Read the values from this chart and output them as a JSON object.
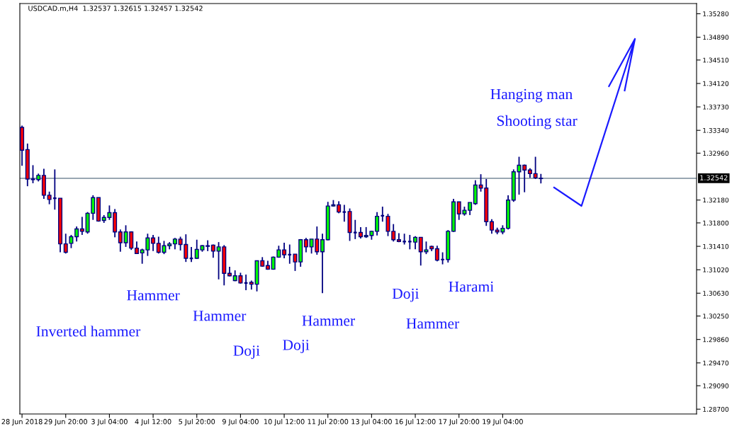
{
  "chart_data": {
    "type": "candlestick",
    "title": "USDCAD.m,H4  1.32537 1.32615 1.32457 1.32542",
    "categories": [
      "28 Jun 2018",
      null,
      null,
      null,
      null,
      null,
      null,
      null,
      "29 Jun 20:00",
      null,
      null,
      null,
      null,
      null,
      null,
      null,
      "3 Jul 04:00",
      null,
      null,
      null,
      null,
      null,
      null,
      null,
      "4 Jul 12:00",
      null,
      null,
      null,
      null,
      null,
      null,
      null,
      "5 Jul 20:00",
      null,
      null,
      null,
      null,
      null,
      null,
      null,
      "9 Jul 04:00",
      null,
      null,
      null,
      null,
      null,
      null,
      null,
      "10 Jul 12:00",
      null,
      null,
      null,
      null,
      null,
      null,
      null,
      "11 Jul 20:00",
      null,
      null,
      null,
      null,
      null,
      null,
      null,
      "13 Jul 04:00",
      null,
      null,
      null,
      null,
      null,
      null,
      null,
      "16 Jul 12:00",
      null,
      null,
      null,
      null,
      null,
      null,
      null,
      "17 Jul 20:00",
      null,
      null,
      null,
      null,
      null,
      null,
      null,
      "19 Jul 04:00",
      null,
      null,
      null,
      null,
      null,
      null,
      null,
      null,
      null,
      null,
      null,
      null,
      null,
      null,
      null,
      null,
      null,
      null,
      null,
      null,
      null,
      null,
      null,
      null,
      null,
      null,
      null,
      null,
      null,
      null,
      null,
      null,
      null,
      null,
      null
    ],
    "ohlc": [
      [
        1.3339,
        1.3342,
        1.3275,
        1.3301
      ],
      [
        1.3302,
        1.3312,
        1.3241,
        1.3253
      ],
      [
        1.3253,
        1.3276,
        1.3246,
        1.3252
      ],
      [
        1.3252,
        1.3262,
        1.3249,
        1.3259
      ],
      [
        1.3259,
        1.327,
        1.322,
        1.3226
      ],
      [
        1.3226,
        1.3232,
        1.3211,
        1.3219
      ],
      [
        1.3221,
        1.3269,
        1.3202,
        1.3221
      ],
      [
        1.3221,
        1.3221,
        1.3131,
        1.3145
      ],
      [
        1.3145,
        1.3162,
        1.3129,
        1.3131
      ],
      [
        1.3146,
        1.316,
        1.3138,
        1.3157
      ],
      [
        1.3157,
        1.3174,
        1.3149,
        1.317
      ],
      [
        1.317,
        1.319,
        1.316,
        1.3166
      ],
      [
        1.3165,
        1.3198,
        1.3162,
        1.3196
      ],
      [
        1.3196,
        1.3226,
        1.3185,
        1.3222
      ],
      [
        1.3222,
        1.3222,
        1.3182,
        1.3183
      ],
      [
        1.3184,
        1.3193,
        1.318,
        1.3189
      ],
      [
        1.3189,
        1.3209,
        1.3185,
        1.3197
      ],
      [
        1.3197,
        1.3203,
        1.3156,
        1.3165
      ],
      [
        1.3165,
        1.3169,
        1.3132,
        1.3147
      ],
      [
        1.3147,
        1.3176,
        1.314,
        1.3165
      ],
      [
        1.3165,
        1.3166,
        1.3135,
        1.3138
      ],
      [
        1.3138,
        1.3149,
        1.3128,
        1.3129
      ],
      [
        1.313,
        1.3137,
        1.3112,
        1.3135
      ],
      [
        1.3135,
        1.3162,
        1.3125,
        1.3155
      ],
      [
        1.3155,
        1.316,
        1.3133,
        1.3146
      ],
      [
        1.3146,
        1.3157,
        1.3129,
        1.3131
      ],
      [
        1.3131,
        1.315,
        1.3128,
        1.3142
      ],
      [
        1.3142,
        1.3148,
        1.3136,
        1.3145
      ],
      [
        1.3145,
        1.3155,
        1.3136,
        1.3153
      ],
      [
        1.3153,
        1.3157,
        1.3134,
        1.3144
      ],
      [
        1.3144,
        1.3161,
        1.3115,
        1.3121
      ],
      [
        1.3121,
        1.314,
        1.3115,
        1.3121
      ],
      [
        1.3121,
        1.3152,
        1.312,
        1.3136
      ],
      [
        1.3135,
        1.3143,
        1.3132,
        1.3142
      ],
      [
        1.3142,
        1.3151,
        1.3133,
        1.3141
      ],
      [
        1.3143,
        1.3144,
        1.3122,
        1.3133
      ],
      [
        1.3133,
        1.3148,
        1.3086,
        1.314
      ],
      [
        1.314,
        1.3143,
        1.3076,
        1.3096
      ],
      [
        1.3096,
        1.3107,
        1.3091,
        1.3092
      ],
      [
        1.3084,
        1.3101,
        1.3083,
        1.3092
      ],
      [
        1.3092,
        1.3097,
        1.3079,
        1.308
      ],
      [
        1.308,
        1.3094,
        1.3068,
        1.308
      ],
      [
        1.3081,
        1.3084,
        1.3069,
        1.3078
      ],
      [
        1.3078,
        1.3117,
        1.3066,
        1.3117
      ],
      [
        1.3117,
        1.3123,
        1.3107,
        1.3108
      ],
      [
        1.3109,
        1.3117,
        1.3102,
        1.3103
      ],
      [
        1.3103,
        1.3124,
        1.3102,
        1.3123
      ],
      [
        1.3123,
        1.3142,
        1.3122,
        1.3135
      ],
      [
        1.3135,
        1.3147,
        1.3121,
        1.3127
      ],
      [
        1.3127,
        1.3144,
        1.3112,
        1.3127
      ],
      [
        1.3128,
        1.3128,
        1.31,
        1.3115
      ],
      [
        1.3115,
        1.3153,
        1.3107,
        1.3152
      ],
      [
        1.3152,
        1.3155,
        1.3131,
        1.314
      ],
      [
        1.314,
        1.3153,
        1.3129,
        1.3153
      ],
      [
        1.3153,
        1.3174,
        1.3127,
        1.3132
      ],
      [
        1.3132,
        1.3162,
        1.3063,
        1.3152
      ],
      [
        1.3152,
        1.3215,
        1.3151,
        1.3208
      ],
      [
        1.3208,
        1.3218,
        1.3207,
        1.321
      ],
      [
        1.321,
        1.3216,
        1.3196,
        1.3198
      ],
      [
        1.3198,
        1.321,
        1.3182,
        1.3198
      ],
      [
        1.3199,
        1.3204,
        1.315,
        1.3164
      ],
      [
        1.3164,
        1.3185,
        1.3153,
        1.3164
      ],
      [
        1.3164,
        1.3173,
        1.3154,
        1.3157
      ],
      [
        1.3157,
        1.3173,
        1.3155,
        1.3159
      ],
      [
        1.3159,
        1.3167,
        1.3152,
        1.3166
      ],
      [
        1.3166,
        1.3198,
        1.3159,
        1.3191
      ],
      [
        1.3192,
        1.3207,
        1.3182,
        1.3192
      ],
      [
        1.3191,
        1.3195,
        1.3158,
        1.3166
      ],
      [
        1.3166,
        1.3178,
        1.3149,
        1.3152
      ],
      [
        1.3152,
        1.3163,
        1.3148,
        1.3149
      ],
      [
        1.3149,
        1.3162,
        1.3144,
        1.3149
      ],
      [
        1.3149,
        1.316,
        1.3136,
        1.3149
      ],
      [
        1.3148,
        1.3158,
        1.3136,
        1.3156
      ],
      [
        1.3156,
        1.3156,
        1.3109,
        1.3132
      ],
      [
        1.3132,
        1.3149,
        1.3128,
        1.3135
      ],
      [
        1.3141,
        1.3142,
        1.3133,
        1.3137
      ],
      [
        1.3137,
        1.3142,
        1.3116,
        1.3118
      ],
      [
        1.3119,
        1.3131,
        1.3111,
        1.3119
      ],
      [
        1.3119,
        1.3168,
        1.3114,
        1.3166
      ],
      [
        1.3166,
        1.322,
        1.3165,
        1.3215
      ],
      [
        1.3215,
        1.3215,
        1.3185,
        1.3195
      ],
      [
        1.3195,
        1.3207,
        1.3192,
        1.3201
      ],
      [
        1.3201,
        1.3214,
        1.3193,
        1.3214
      ],
      [
        1.3212,
        1.3251,
        1.321,
        1.3243
      ],
      [
        1.3243,
        1.3261,
        1.3232,
        1.3238
      ],
      [
        1.3238,
        1.3253,
        1.3175,
        1.3182
      ],
      [
        1.3182,
        1.3186,
        1.3162,
        1.3168
      ],
      [
        1.3168,
        1.3172,
        1.3161,
        1.3165
      ],
      [
        1.3165,
        1.3176,
        1.3161,
        1.3171
      ],
      [
        1.3171,
        1.3226,
        1.3169,
        1.3218
      ],
      [
        1.3218,
        1.3269,
        1.3215,
        1.3265
      ],
      [
        1.3265,
        1.329,
        1.3227,
        1.3276
      ],
      [
        1.3276,
        1.3277,
        1.3231,
        1.3268
      ],
      [
        1.3268,
        1.3271,
        1.3255,
        1.3262
      ],
      [
        1.3262,
        1.329,
        1.3253,
        1.3255
      ],
      [
        1.32537,
        1.32615,
        1.32457,
        1.32542
      ],
      null,
      null,
      null,
      null,
      null,
      null,
      null,
      null,
      null,
      null,
      null,
      null,
      null,
      null,
      null,
      null,
      null,
      null,
      null,
      null,
      null,
      null,
      null,
      null,
      null,
      null,
      null,
      null
    ],
    "ylim": [
      1.2862,
      1.3545
    ],
    "yticks": [
      {
        "value": 1.287,
        "label": "1.28700"
      },
      {
        "value": 1.2909,
        "label": "1.29090"
      },
      {
        "value": 1.2947,
        "label": "1.29470"
      },
      {
        "value": 1.2986,
        "label": "1.29860"
      },
      {
        "value": 1.3025,
        "label": "1.30250"
      },
      {
        "value": 1.3063,
        "label": "1.30630"
      },
      {
        "value": 1.3102,
        "label": "1.31020"
      },
      {
        "value": 1.3141,
        "label": "1.31410"
      },
      {
        "value": 1.318,
        "label": "1.31800"
      },
      {
        "value": 1.3218,
        "label": "1.32180"
      },
      {
        "value": 1.3296,
        "label": "1.32960"
      },
      {
        "value": 1.3334,
        "label": "1.33340"
      },
      {
        "value": 1.3373,
        "label": "1.33730"
      },
      {
        "value": 1.3412,
        "label": "1.34120"
      },
      {
        "value": 1.3451,
        "label": "1.34510"
      },
      {
        "value": 1.3489,
        "label": "1.34890"
      },
      {
        "value": 1.3528,
        "label": "1.35280"
      }
    ],
    "ref_lines": [
      {
        "axis": "y",
        "value": 1.32542,
        "label": "1.32542",
        "color": "#778899"
      }
    ],
    "grid": false,
    "legend": false,
    "annotations": [
      "Hanging man",
      "Shooting star",
      "Inverted hammer",
      "Hammer",
      "Hammer",
      "Doji",
      "Doji",
      "Hammer",
      "Doji",
      "Hammer",
      "Harami"
    ]
  }
}
